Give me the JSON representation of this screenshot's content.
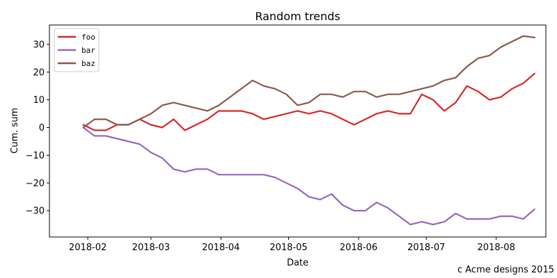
{
  "chart_data": {
    "type": "line",
    "title": "Random trends",
    "xlabel": "Date",
    "ylabel": "Cum. sum",
    "x_range": [
      "2018-01-15",
      "2018-08-23"
    ],
    "ylim": [
      -39.5,
      37
    ],
    "x_ticks": [
      "2018-02-01",
      "2018-03-01",
      "2018-04-01",
      "2018-05-01",
      "2018-06-01",
      "2018-07-01",
      "2018-08-01"
    ],
    "x_tick_labels": [
      "2018-02",
      "2018-03",
      "2018-04",
      "2018-05",
      "2018-06",
      "2018-07",
      "2018-08"
    ],
    "y_ticks": [
      -30,
      -20,
      -10,
      0,
      10,
      20,
      30
    ],
    "y_tick_labels": [
      "−30",
      "−20",
      "−10",
      "0",
      "10",
      "20",
      "30"
    ],
    "grid": false,
    "legend_position": "top-left",
    "series": [
      {
        "name": "foo",
        "color": "#d62728",
        "x": [
          "2018-01-30",
          "2018-02-04",
          "2018-02-09",
          "2018-02-14",
          "2018-02-19",
          "2018-02-24",
          "2018-03-01",
          "2018-03-06",
          "2018-03-11",
          "2018-03-16",
          "2018-03-21",
          "2018-03-26",
          "2018-03-31",
          "2018-04-05",
          "2018-04-10",
          "2018-04-15",
          "2018-04-20",
          "2018-04-25",
          "2018-04-30",
          "2018-05-05",
          "2018-05-10",
          "2018-05-15",
          "2018-05-20",
          "2018-05-25",
          "2018-05-30",
          "2018-06-04",
          "2018-06-09",
          "2018-06-14",
          "2018-06-19",
          "2018-06-24",
          "2018-06-29",
          "2018-07-04",
          "2018-07-09",
          "2018-07-14",
          "2018-07-19",
          "2018-07-24",
          "2018-07-29",
          "2018-08-03",
          "2018-08-08",
          "2018-08-13",
          "2018-08-18"
        ],
        "y": [
          1,
          -1,
          -1,
          1,
          1,
          3,
          1,
          0,
          3,
          -1,
          1,
          3,
          6,
          6,
          6,
          5,
          3,
          4,
          5,
          6,
          5,
          6,
          5,
          3,
          1,
          3,
          5,
          6,
          5,
          5,
          12,
          10,
          6,
          9,
          15,
          13,
          10,
          11,
          14,
          16,
          19.5
        ]
      },
      {
        "name": "bar",
        "color": "#9467bd",
        "x": [
          "2018-01-30",
          "2018-02-04",
          "2018-02-09",
          "2018-02-14",
          "2018-02-19",
          "2018-02-24",
          "2018-03-01",
          "2018-03-06",
          "2018-03-11",
          "2018-03-16",
          "2018-03-21",
          "2018-03-26",
          "2018-03-31",
          "2018-04-05",
          "2018-04-10",
          "2018-04-15",
          "2018-04-20",
          "2018-04-25",
          "2018-04-30",
          "2018-05-05",
          "2018-05-10",
          "2018-05-15",
          "2018-05-20",
          "2018-05-25",
          "2018-05-30",
          "2018-06-04",
          "2018-06-09",
          "2018-06-14",
          "2018-06-19",
          "2018-06-24",
          "2018-06-29",
          "2018-07-04",
          "2018-07-09",
          "2018-07-14",
          "2018-07-19",
          "2018-07-24",
          "2018-07-29",
          "2018-08-03",
          "2018-08-08",
          "2018-08-13",
          "2018-08-18"
        ],
        "y": [
          0,
          -3,
          -3,
          -4,
          -5,
          -6,
          -9,
          -11,
          -15,
          -16,
          -15,
          -15,
          -17,
          -17,
          -17,
          -17,
          -17,
          -18,
          -20,
          -22,
          -25,
          -26,
          -24,
          -28,
          -30,
          -30,
          -27,
          -29,
          -32,
          -35,
          -34,
          -35,
          -34,
          -31,
          -33,
          -33,
          -33,
          -32,
          -32,
          -33,
          -29.5
        ]
      },
      {
        "name": "baz",
        "color": "#8c564b",
        "x": [
          "2018-01-30",
          "2018-02-04",
          "2018-02-09",
          "2018-02-14",
          "2018-02-19",
          "2018-02-24",
          "2018-03-01",
          "2018-03-06",
          "2018-03-11",
          "2018-03-16",
          "2018-03-21",
          "2018-03-26",
          "2018-03-31",
          "2018-04-05",
          "2018-04-10",
          "2018-04-15",
          "2018-04-20",
          "2018-04-25",
          "2018-04-30",
          "2018-05-05",
          "2018-05-10",
          "2018-05-15",
          "2018-05-20",
          "2018-05-25",
          "2018-05-30",
          "2018-06-04",
          "2018-06-09",
          "2018-06-14",
          "2018-06-19",
          "2018-06-24",
          "2018-06-29",
          "2018-07-04",
          "2018-07-09",
          "2018-07-14",
          "2018-07-19",
          "2018-07-24",
          "2018-07-29",
          "2018-08-03",
          "2018-08-08",
          "2018-08-13",
          "2018-08-18"
        ],
        "y": [
          0,
          3,
          3,
          1,
          1,
          3,
          5,
          8,
          9,
          8,
          7,
          6,
          8,
          11,
          14,
          17,
          15,
          14,
          12,
          8,
          9,
          12,
          12,
          11,
          13,
          13,
          11,
          12,
          12,
          13,
          14,
          15,
          17,
          18,
          22,
          25,
          26,
          29,
          31,
          33,
          32.5
        ]
      }
    ],
    "footer": "c Acme designs 2015"
  }
}
